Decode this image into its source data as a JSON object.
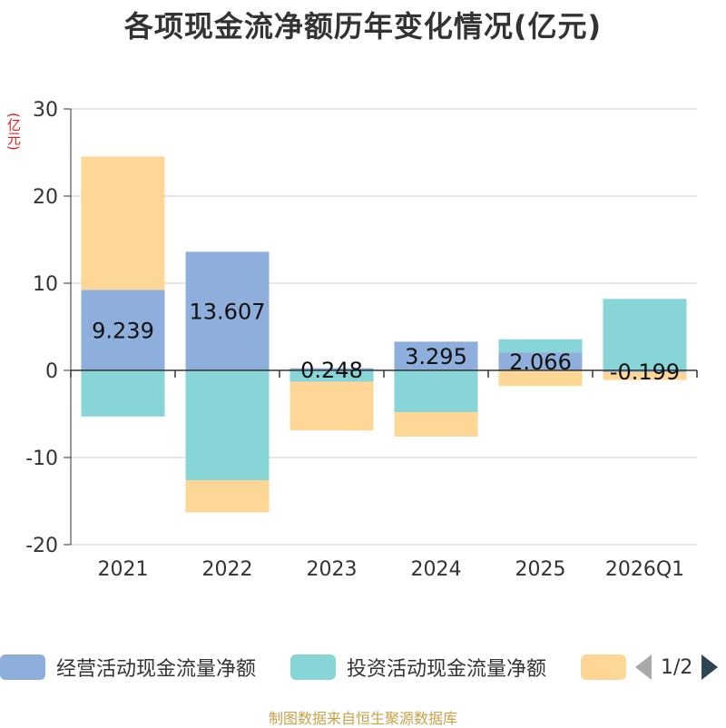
{
  "chart_data": {
    "type": "bar",
    "stacked": true,
    "title": "各项现金流净额历年变化情况(亿元)",
    "ylabel": "(亿元)",
    "xlabel": "",
    "ylim": [
      -20,
      30
    ],
    "yticks": [
      30,
      20,
      10,
      0,
      -10,
      -20
    ],
    "categories": [
      "2021",
      "2022",
      "2023",
      "2024",
      "2025",
      "2026Q1"
    ],
    "series": [
      {
        "name": "经营活动现金流量净额",
        "color": "#8eaedb",
        "values": [
          9.239,
          13.607,
          0.248,
          3.295,
          2.066,
          -0.199
        ],
        "labels": [
          "9.239",
          "13.607",
          "0.248",
          "3.295",
          "2.066",
          "-0.199"
        ]
      },
      {
        "name": "投资活动现金流量净额",
        "color": "#88d5d8",
        "values": [
          -5.3,
          -12.6,
          -1.3,
          -4.8,
          1.5,
          8.2
        ]
      },
      {
        "name": "",
        "color": "#fed796",
        "values": [
          15.3,
          -3.7,
          -5.6,
          -2.8,
          -1.8,
          -0.9
        ]
      }
    ],
    "legend_position": "bottom"
  },
  "legend": {
    "items": [
      {
        "label": "经营活动现金流量净额",
        "color": "#8eaedb"
      },
      {
        "label": "投资活动现金流量净额",
        "color": "#88d5d8"
      },
      {
        "label": "",
        "color": "#fed796"
      }
    ],
    "page_text": "1/2"
  },
  "footer": {
    "source": "制图数据来自恒生聚源数据库"
  }
}
